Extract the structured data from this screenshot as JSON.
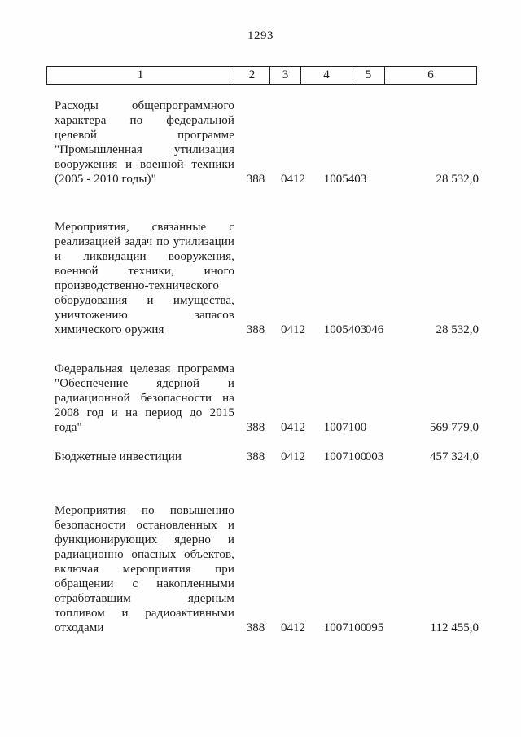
{
  "page": {
    "number": "1293"
  },
  "table": {
    "header_cells": [
      "1",
      "2",
      "3",
      "4",
      "5",
      "6"
    ]
  },
  "rows": [
    {
      "lines": [
        "Расходы общепрограммного",
        "характера по федеральной",
        "целевой программе",
        "\"Промышленная утилизация",
        "вооружения и военной техники",
        "(2005 - 2010 годы)\""
      ],
      "c2": "388",
      "c3": "0412",
      "c4": "1005403",
      "c5": "",
      "c6": "28 532,0"
    },
    {
      "lines": [
        "Мероприятия, связанные с",
        "реализацией задач по утилизации",
        "и ликвидации вооружения,",
        "военной техники, иного",
        "производственно-технического",
        "оборудования и имущества,",
        "уничтожению запасов",
        "химического оружия"
      ],
      "c2": "388",
      "c3": "0412",
      "c4": "1005403",
      "c5": "046",
      "c6": "28 532,0"
    },
    {
      "lines": [
        "Федеральная целевая программа",
        "\"Обеспечение ядерной и",
        "радиационной безопасности на",
        "2008 год и на период до 2015",
        "года\""
      ],
      "c2": "388",
      "c3": "0412",
      "c4": "1007100",
      "c5": "",
      "c6": "569 779,0"
    },
    {
      "lines": [
        "Бюджетные инвестиции"
      ],
      "c2": "388",
      "c3": "0412",
      "c4": "1007100",
      "c5": "003",
      "c6": "457 324,0"
    },
    {
      "lines": [
        "Мероприятия по повышению",
        "безопасности остановленных и",
        "функционирующих ядерно и",
        "радиационно опасных объектов,",
        "включая мероприятия при",
        "обращении с накопленными",
        "отработавшим ядерным",
        "топливом и радиоактивными",
        "отходами"
      ],
      "c2": "388",
      "c3": "0412",
      "c4": "1007100",
      "c5": "095",
      "c6": "112 455,0"
    }
  ]
}
